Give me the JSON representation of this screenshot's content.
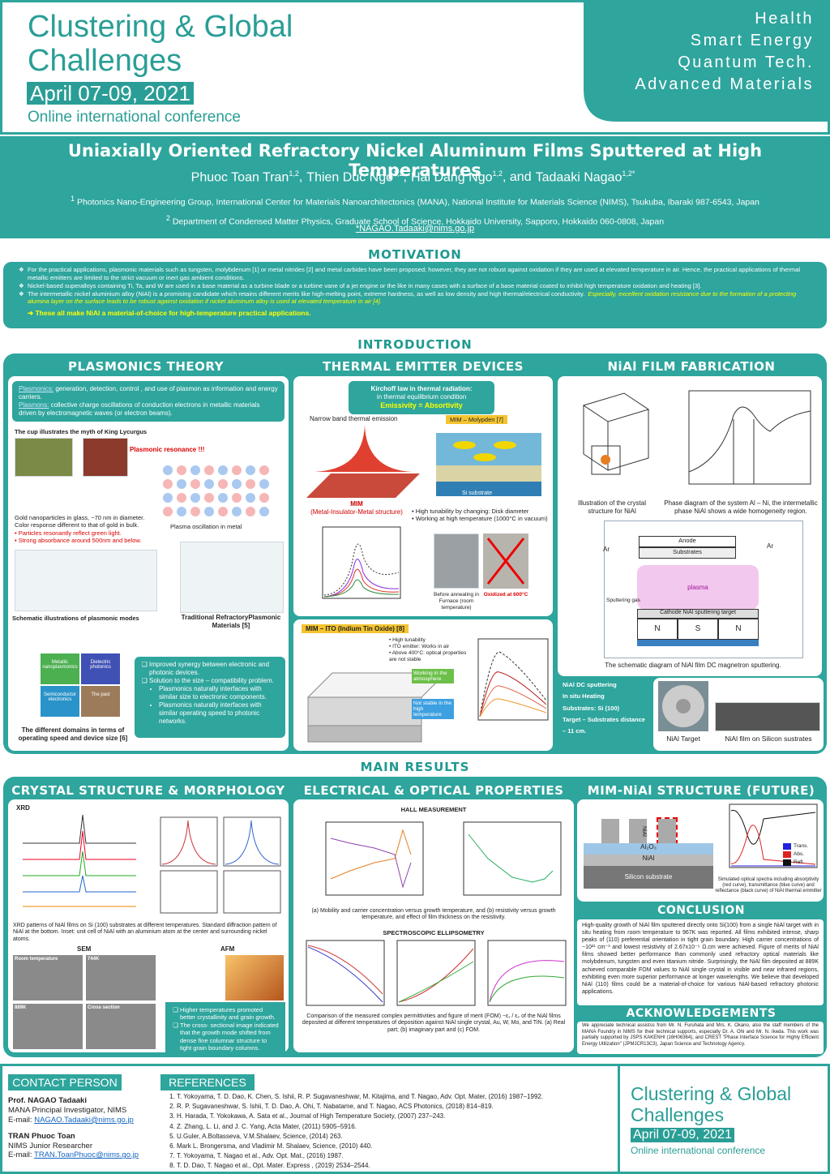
{
  "header": {
    "title_line1": "Clustering & Global",
    "title_line2": "Challenges",
    "date": "April 07-09, 2021",
    "subtitle": "Online international conference",
    "topics": [
      "Health",
      "Smart Energy",
      "Quantum Tech.",
      "Advanced Materials"
    ]
  },
  "paper": {
    "title": "Uniaxially Oriented Refractory Nickel Aluminum Films Sputtered at High Temperatures",
    "authors": [
      {
        "name": "Phuoc Toan Tran",
        "sup": "1,2",
        "sep": ","
      },
      {
        "name": "Thien Duc Ngo",
        "sup": "1,2",
        "sep": ","
      },
      {
        "name": "Hai Dang Ngo",
        "sup": "1,2",
        "sep": ", and"
      },
      {
        "name": "Tadaaki Nagao",
        "sup": "1,2*",
        "sep": ""
      }
    ],
    "affiliations": [
      {
        "sup": "1",
        "text": "Photonics Nano-Engineering Group, International Center for Materials Nanoarchitectonics (MANA), National Institute for Materials Science (NIMS), Tsukuba, Ibaraki 987-6543, Japan"
      },
      {
        "sup": "2",
        "text": "Department of Condensed Matter Physics, Graduate School of Science, Hokkaido University, Sapporo, Hokkaido 060-0808, Japan"
      }
    ],
    "email": "*NAGAO.Tadaaki@nims.go.jp"
  },
  "motivation": {
    "heading": "MOTIVATION",
    "bullets": [
      "For the practical applications, plasmonic materials such as tungsten, molybdenum [1] or metal nitrides [2] and metal carbides have been proposed; however, they are not robust against oxidation if they are used at elevated temperature in air. Hence, the practical applications of thermal metallic emitters are limited to the strict vacuum or inert gas ambient conditions.",
      "Nickel-based superalloys containing Ti, Ta, and W are used in a base material as a turbine blade or a turbine vane of a jet engine or the like in many cases with a surface of a base material coated to inhibit high temperature oxidation and heating [3].",
      "The intermetallic nickel aluminium alloy (NiAl) is a promising candidate which retains different merits like high-melting point, extreme hardness, as well as low density and high thermal/electrical conductivity."
    ],
    "emphasis": "Especially, excellent oxidation resistance due to the formation of a protecting alumina layer on the surface leads to be robust against oxidation if nickel aluminum alloy is used at elevated temperature in air [4].",
    "conclusion": "➔ These all make NiAl a material-of-choice for high-temperature practical applications."
  },
  "introduction": {
    "heading": "INTRODUCTION",
    "plasmonics": {
      "heading": "PLASMONICS THEORY",
      "box": [
        {
          "term": "Plasmonics:",
          "text": " generation, detection, control , and use of plasmon as information and energy carriers."
        },
        {
          "term": "Plasmons:",
          "text": " collective charge oscillations of conduction electrons in metallic materials driven by electromagnetic waves (or electron beams)."
        }
      ],
      "cup_caption": "The cup illustrates the myth of King Lycurgus",
      "cup_text": "Gold nanoparticles in glass, ~70 nm in diameter. Color response different to that of gold in bulk.",
      "cup_points": [
        "• Particles resonantly reflect green light.",
        "• Strong absorbance  around 500nm and below."
      ],
      "resonance": "Plasmonic resonance !!!",
      "plasma_caption": "Plasma oscillation in metal",
      "modes_caption": "Schematic illustrations of plasmonic modes",
      "refractory_caption": "Traditional RefractoryPlasmonic Materials [5]",
      "domains_caption": "The different domains in terms of operating speed and device size [6]",
      "domains": [
        "Metallic nanoplasmonics",
        "Dielectric photonics",
        "Semiconductor electronics",
        "The past"
      ],
      "bullets": [
        "Improved synergy between electronic and photonic devices.",
        "Solution to the size – compatibility problem."
      ],
      "subbullets": [
        "Plasmonics naturally interfaces with similar size to electronic components.",
        "Plasmonics naturally interfaces with similar operating speed to photonic networks."
      ]
    },
    "thermal": {
      "heading": "THERMAL EMITTER DEVICES",
      "kirchhoff": "Kirchoff law in thermal radiation:",
      "kirchhoff_sub": "in thermal equilibrium condition",
      "emissivity": "Emissivity = Absortivity",
      "narrow": "Narrow band thermal emission",
      "mim_molypden": "MIM – Molypden [7]",
      "si_substrate": "Si substrate",
      "mim": "MIM",
      "mim_full": "(Metal-Insulator-Metal structure)",
      "points": [
        "• High tunability by changing: Disk diameter",
        "• Working at high temperature (1000°C in vacuum)"
      ],
      "before": "Before annealing in Furnace (room temperature)",
      "oxidized": "Oxidized at 600°C",
      "mim_ito": "MIM – ITO (Indium Tin Oxide) [8]",
      "ito_points": [
        "• High tunability",
        "• ITO emitter: Works in air",
        "• Above 400°C: optical properties are not stable"
      ],
      "working": "Working in the atmosphere",
      "not_stable": "Not stable in the high temperature"
    },
    "fabrication": {
      "heading": "NiAl FILM FABRICATION",
      "crystal_caption": "Illustration of the crystal structure for NiAl",
      "phase_caption": "Phase diagram of the system Al – Ni, the intermetallic phase NiAl shows a wide homogeneity region.",
      "sputter_labels": [
        "Anode",
        "Substrates",
        "plasma",
        "Sputtering gas",
        "Cathode NiAl sputtering target",
        "Ar",
        "Ar"
      ],
      "magnets": [
        "N",
        "S",
        "N"
      ],
      "sputter_caption": "The schematic diagram of NiAl film DC magnetron sputtering.",
      "bullets": [
        "NiAl DC sputtering",
        "In situ Heating",
        "Substrates: Si (100)",
        "Target – Substrates distance – 11 cm."
      ],
      "target_caption": "NiAl Target",
      "film_caption": "NiAl film on Silicon sustrates"
    }
  },
  "main_results": {
    "heading": "MAIN RESULTS",
    "crystal": {
      "heading": "CRYSTAL STRUCTURE & MORPHOLOGY",
      "xrd": "XRD",
      "xrd_caption": "XRD patterns of NiAl films on Si (100) substrates at different temperatures. Standard diffraction pattern of NiAl at the bottom. Inset: unit cell of NiAl with an aluminium atom at the center and surrounding nickel atoms.",
      "sem": "SEM",
      "afm": "AFM",
      "sem_labels": [
        "Room temperature",
        "744K",
        "889K",
        "Cross section"
      ],
      "bullets": [
        "Higher temperatures promoted better crystallinity and grain growth.",
        "The cross- sectional image indicated that the growth mode shifted from dense fine columnar structure to tight grain boundary columns."
      ]
    },
    "electrical": {
      "heading": "ELECTRICAL & OPTICAL PROPERTIES",
      "hall": "HALL MEASUREMENT",
      "hall_caption": "(a) Mobility and carrier concentration versus growth temperature, and (b) resistivity versus growth temperature, and effect of film thickness on the resistivity.",
      "spectro": "SPECTROSCOPIC ELLIPSOMETRY",
      "spectro_caption": "Comparison of the measured complex permittivities and figure of merit (FOM) −ε₁ / ε₂ of the NiAl films deposited at different temperatures of deposition against NiAl single crystal, Au, W, Mo, and TiN. (a) Real part; (b) imaginary part and (c) FOM."
    },
    "mim": {
      "heading": "MIM-NiAl STRUCTURE (FUTURE)",
      "layers": [
        "NiAl",
        "Al₂O₃",
        "NiAl",
        "Silicon substrate"
      ],
      "legend": [
        "Trans.",
        "Abs.",
        "Refl."
      ],
      "caption": "Simulated optical spectra including absorptivity (red curve), transmittance (blue curve) and reflectance (black curve) of NiAl thermal emmitter"
    },
    "conclusion": {
      "heading": "CONCLUSION",
      "text": "High-quality growth of NiAl film sputtered directly onto Si(100) from a single NiAl target with in situ heating from room temperature to 967K was reported. All films exhibited intense, sharp peaks of (110) preferential orientation in tight grain boundary. High carrier concentrations of ~10²¹ cm⁻³ and lowest resistivity of 2.67x10⁻⁵ Ω.cm were achieved. Figure of merits of NiAl films showed better performance than commonly used refractory optical materials like molybdenum, tungsten and even titanium nitride. Surprisingly, the NiAl film deposited at 889K achieved comparable FOM values to NiAl single crystal in visible and near infrared regions, exhibiting even more superior performance at longer wavelengths. We believe that developed NiAl (110) films could be a material-of-choice for various NiAl-based refractory photonic applications."
    },
    "acknowledgements": {
      "heading": "ACKNOWLEDGEMENTS",
      "text": "We appreciate technical assistss from Mr. N. Furuhata and Mrs. K. Okano, also the staff members of the MANA Foundry in NIMS for their technical supports, especially Dr. A. Ohi and Mr. N. Ikeda. This work was partially supported by JSPS KAKENHI (16H06364), and CREST \"Phase Interface Science for Highly Efficient Energy Utilization\" (JPMJCR13C3), Japan Science and Technology Agency."
    }
  },
  "contact": {
    "heading": "CONTACT PERSON",
    "persons": [
      {
        "name": "Prof. NAGAO Tadaaki",
        "role": "MANA Principal Investigator, NIMS",
        "label": "E-mail: ",
        "email": "NAGAO.Tadaaki@nims.go.jp"
      },
      {
        "name": "TRAN Phuoc Toan",
        "role": "NIMS Junior Researcher",
        "label": "E-mail: ",
        "email": "TRAN.ToanPhuoc@nims.go.jp"
      }
    ]
  },
  "references": {
    "heading": "REFERENCES",
    "items": [
      "T. Yokoyama, T. D. Dao, K. Chen, S. Ishii, R. P. Sugavaneshwar, M. Kitajima, and T. Nagao,  Adv. Opt. Mater, (2016) 1987–1992.",
      "R. P. Sugavaneshwar, S. Ishii, T. D. Dao, A. Ohi, T. Nabatame, and T. Nagao, ACS Photonics, (2018) 814–819.",
      "H. Harada, T. Yokokawa, A. Sata et al., Journal of High Temperature Society, (2007) 237–243.",
      "Z. Zhang, L. Li, and J. C. Yang, Acta Mater, (2011) 5905–5916.",
      "U.Guler, A.Boltasseva, V.M.Shalaev, Science, (2014) 263.",
      "Mark L. Brongersma, and Vladimir M. Shalaev, Science, (2010) 440.",
      "T. Yokoyama, T. Nagao et al., Adv. Opt. Mat., (2016) 1987.",
      "T. D. Dao, T. Nagao et al., Opt. Mater. Express , (2019) 2534–2544."
    ]
  }
}
